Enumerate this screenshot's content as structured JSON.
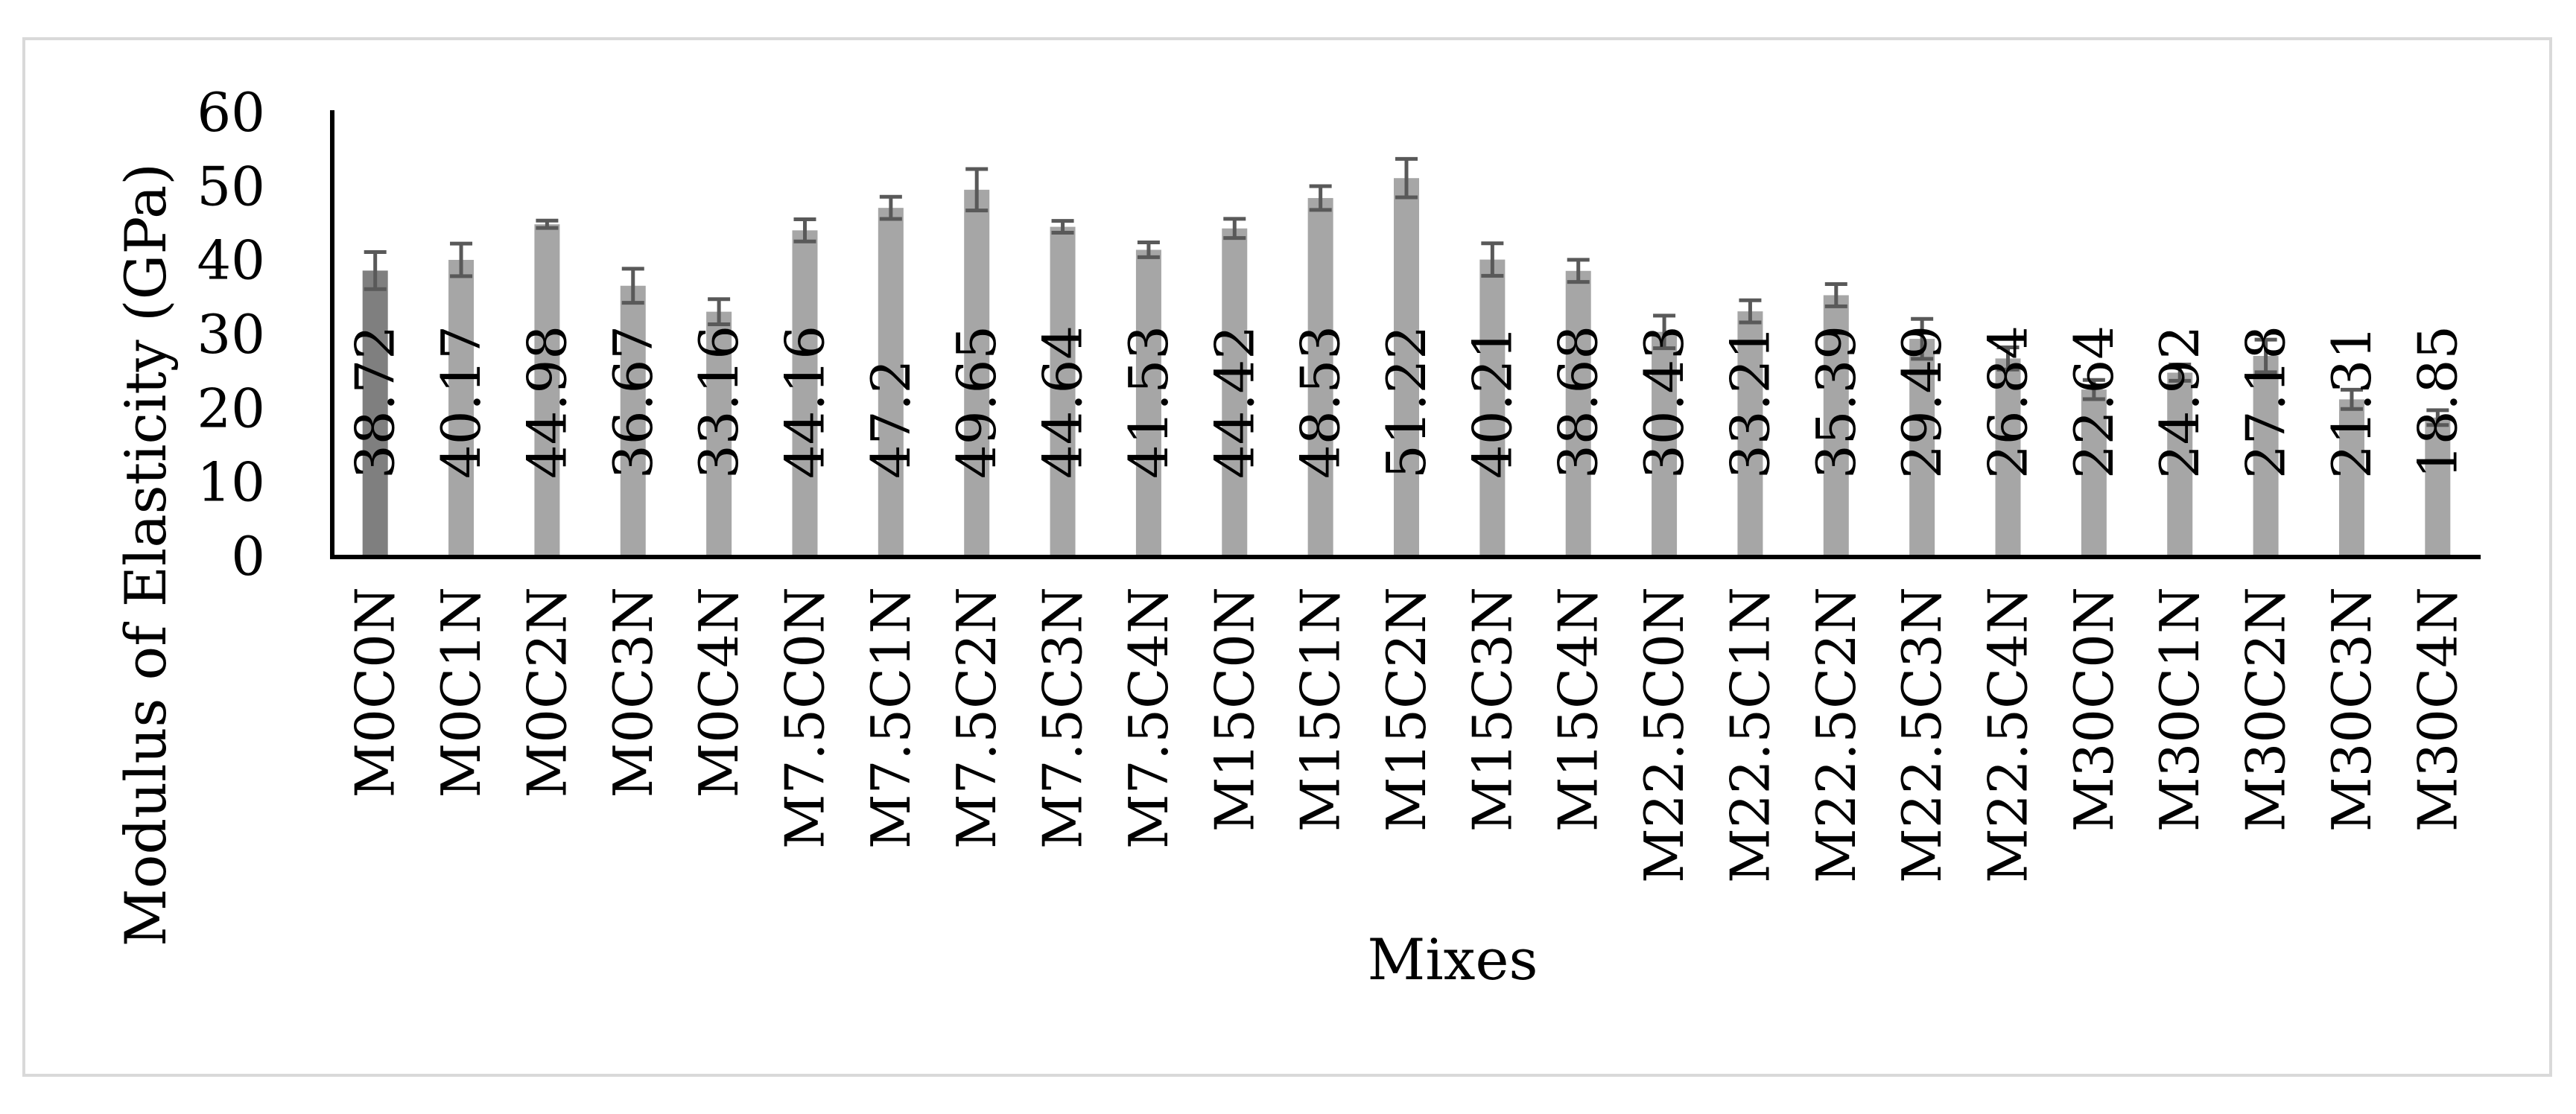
{
  "chart_data": {
    "type": "bar",
    "title": "",
    "xlabel": "Mixes",
    "ylabel": "Modulus of Elasticity (GPa)",
    "ylim": [
      0,
      60
    ],
    "yticks": [
      0,
      10,
      20,
      30,
      40,
      50,
      60
    ],
    "ytick_labels": [
      "0",
      "10",
      "20",
      "30",
      "40",
      "50",
      "60"
    ],
    "grid": false,
    "legend": "none",
    "error_bars": true,
    "categories": [
      "M0C0N",
      "M0C1N",
      "M0C2N",
      "M0C3N",
      "M0C4N",
      "M7.5C0N",
      "M7.5C1N",
      "M7.5C2N",
      "M7.5C3N",
      "M7.5C4N",
      "M15C0N",
      "M15C1N",
      "M15C2N",
      "M15C3N",
      "M15C4N",
      "M22.5C0N",
      "M22.5C1N",
      "M22.5C2N",
      "M22.5C3N",
      "M22.5C4N",
      "M30C0N",
      "M30C1N",
      "M30C2N",
      "M30C3N",
      "M30C4N"
    ],
    "values": [
      38.72,
      40.17,
      44.98,
      36.67,
      33.16,
      44.16,
      47.2,
      49.65,
      44.64,
      41.53,
      44.42,
      48.53,
      51.22,
      40.21,
      38.68,
      30.43,
      33.21,
      35.39,
      29.49,
      26.84,
      22.64,
      24.92,
      27.18,
      21.31,
      18.85
    ],
    "value_labels": [
      "38.72",
      "40.17",
      "44.98",
      "36.67",
      "33.16",
      "44.16",
      "47.2",
      "49.65",
      "44.64",
      "41.53",
      "44.42",
      "48.53",
      "51.22",
      "40.21",
      "38.68",
      "30.43",
      "33.21",
      "35.39",
      "29.49",
      "26.84",
      "22.64",
      "24.92",
      "27.18",
      "21.31",
      "18.85"
    ],
    "errors": [
      2.5,
      2.2,
      0.5,
      2.3,
      1.7,
      1.5,
      1.5,
      2.8,
      0.8,
      1.0,
      1.3,
      1.6,
      2.6,
      2.2,
      1.5,
      2.2,
      1.5,
      1.5,
      2.7,
      1.5,
      1.3,
      1.1,
      2.2,
      1.3,
      1.0
    ],
    "colors": {
      "highlight_bar": "#7f7f7f",
      "bar": "#a6a6a6",
      "error_bar": "#595959",
      "axis": "#000000",
      "frame": "#d9d9d9"
    },
    "highlighted_categories": [
      "M0C0N"
    ]
  }
}
